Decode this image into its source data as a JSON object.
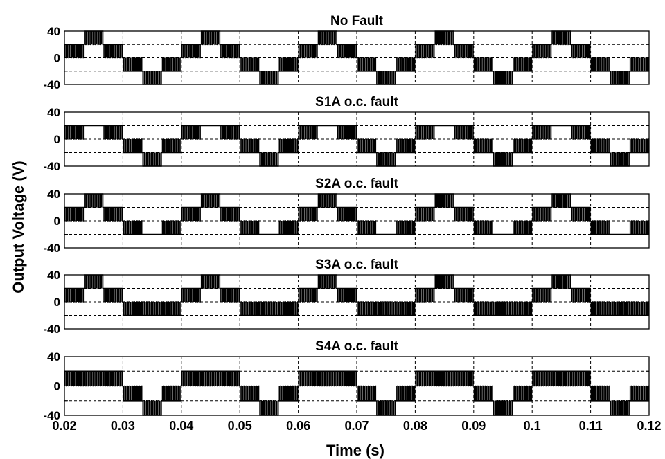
{
  "chart_data": {
    "type": "line",
    "ylabel": "Output Voltage (V)",
    "xlabel": "Time (s)",
    "x_ticks": [
      "0.02",
      "0.03",
      "0.04",
      "0.05",
      "0.06",
      "0.07",
      "0.08",
      "0.09",
      "0.1",
      "0.11",
      "0.12"
    ],
    "x_range": [
      0.02,
      0.12
    ],
    "grid": true,
    "fundamental_period_s": 0.02,
    "panels": [
      {
        "title": "No Fault",
        "y_ticks": [
          "40",
          "0",
          "-40"
        ],
        "ylim": [
          -40,
          40
        ],
        "levels_V": {
          "L": [
            0,
            20
          ],
          "M": [
            20,
            40
          ],
          "N": [
            0,
            -20
          ],
          "O": [
            -20,
            -40
          ]
        },
        "pattern": [
          "L",
          "M",
          "L",
          "N",
          "O",
          "N"
        ]
      },
      {
        "title": "S1A o.c. fault",
        "y_ticks": [
          "40",
          "0",
          "-40"
        ],
        "ylim": [
          -40,
          40
        ],
        "levels_V": {
          "L": [
            0,
            20
          ],
          "M": [
            20,
            20
          ],
          "N": [
            0,
            -20
          ],
          "O": [
            -20,
            -40
          ]
        },
        "pattern": [
          "L",
          "M",
          "L",
          "N",
          "O",
          "N"
        ]
      },
      {
        "title": "S2A o.c. fault",
        "y_ticks": [
          "40",
          "0",
          "-40"
        ],
        "ylim": [
          -40,
          40
        ],
        "levels_V": {
          "L": [
            0,
            20
          ],
          "M": [
            20,
            40
          ],
          "N": [
            0,
            -20
          ],
          "O": [
            -20,
            -20
          ]
        },
        "pattern": [
          "L",
          "M",
          "L",
          "N",
          "O",
          "N"
        ]
      },
      {
        "title": "S3A o.c. fault",
        "y_ticks": [
          "40",
          "0",
          "-40"
        ],
        "ylim": [
          -40,
          40
        ],
        "levels_V": {
          "L": [
            0,
            20
          ],
          "M": [
            20,
            40
          ],
          "N": [
            0,
            -20
          ],
          "O": [
            0,
            -20
          ]
        },
        "pattern": [
          "L",
          "M",
          "L",
          "N",
          "O",
          "N"
        ]
      },
      {
        "title": "S4A o.c. fault",
        "y_ticks": [
          "40",
          "0",
          "-40"
        ],
        "ylim": [
          -40,
          40
        ],
        "levels_V": {
          "L": [
            0,
            20
          ],
          "M": [
            0,
            20
          ],
          "N": [
            0,
            -20
          ],
          "O": [
            -20,
            -40
          ]
        },
        "pattern": [
          "L",
          "M",
          "L",
          "N",
          "O",
          "N"
        ]
      }
    ]
  }
}
